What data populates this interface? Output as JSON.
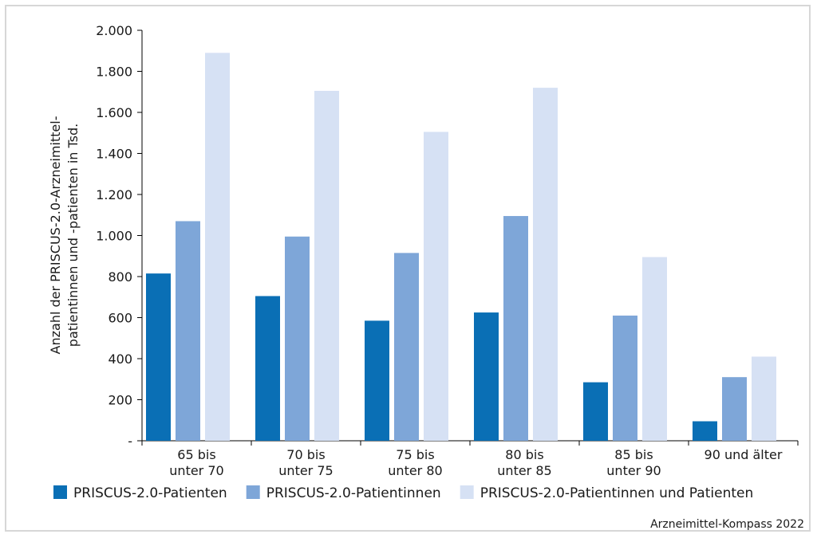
{
  "chart_data": {
    "type": "bar",
    "categories": [
      [
        "65 bis",
        "unter 70"
      ],
      [
        "70 bis",
        "unter 75"
      ],
      [
        "75 bis",
        "unter 80"
      ],
      [
        "80 bis",
        "unter 85"
      ],
      [
        "85 bis",
        "unter 90"
      ],
      [
        "90 und älter"
      ]
    ],
    "series": [
      {
        "name": "PRISCUS-2.0-Patienten",
        "color": "#0a6fb5",
        "values": [
          815,
          705,
          585,
          625,
          285,
          95
        ]
      },
      {
        "name": "PRISCUS-2.0-Patientinnen",
        "color": "#7ea6d8",
        "values": [
          1070,
          995,
          915,
          1095,
          610,
          310
        ]
      },
      {
        "name": "PRISCUS-2.0-Patientinnen und Patienten",
        "color": "#d6e1f4",
        "values": [
          1890,
          1705,
          1505,
          1720,
          895,
          410
        ]
      }
    ],
    "ylabel": [
      "Anzahl der PRISCUS-2.0-Arzneimittel-",
      "patientinnen und -patienten in Tsd."
    ],
    "ylim": [
      0,
      2000
    ],
    "yticks": [
      0,
      200,
      400,
      600,
      800,
      1000,
      1200,
      1400,
      1600,
      1800,
      2000
    ],
    "ytick_labels": [
      "-",
      "200",
      "400",
      "600",
      "800",
      "1.000",
      "1.200",
      "1.400",
      "1.600",
      "1.800",
      "2.000"
    ],
    "grid": false,
    "legend_position": "bottom",
    "source": "Arzneimittel-Kompass 2022"
  }
}
